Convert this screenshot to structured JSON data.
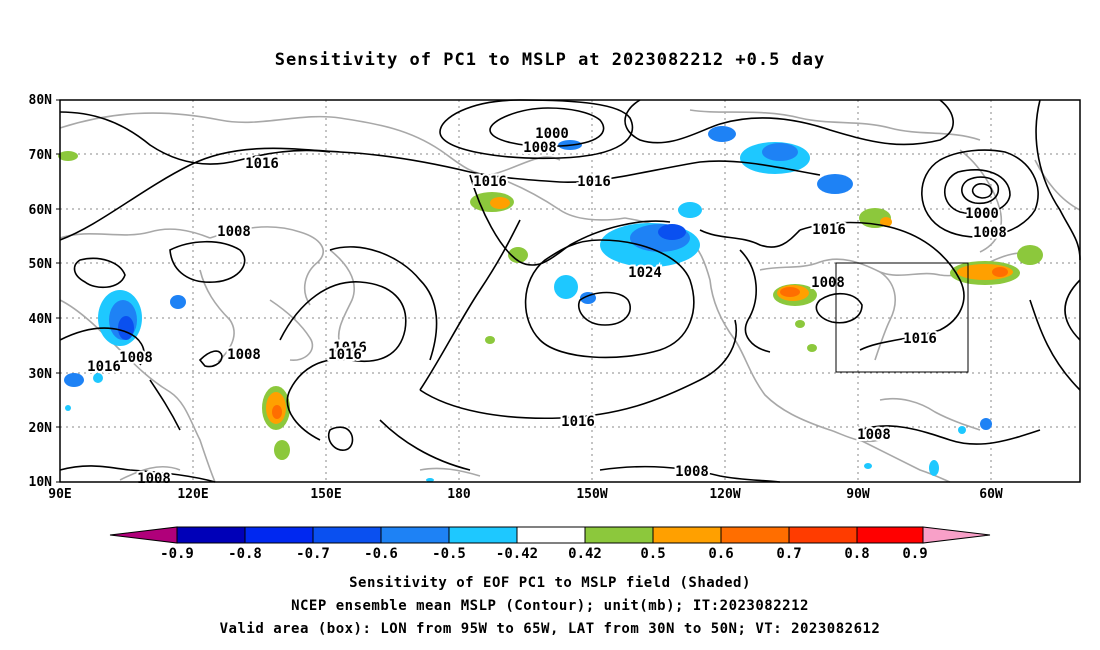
{
  "title": "Sensitivity of PC1 to MSLP at 2023082212 +0.5 day",
  "map": {
    "lat_labels": [
      "80N",
      "70N",
      "60N",
      "50N",
      "40N",
      "30N",
      "20N",
      "10N"
    ],
    "lon_labels": [
      "90E",
      "120E",
      "150E",
      "180",
      "150W",
      "120W",
      "90W",
      "60W"
    ],
    "contour_labels": [
      {
        "text": "1000"
      },
      {
        "text": "1008"
      },
      {
        "text": "1016"
      },
      {
        "text": "1016"
      },
      {
        "text": "1016"
      },
      {
        "text": "1008"
      },
      {
        "text": "1024"
      },
      {
        "text": "1016"
      },
      {
        "text": "1016"
      },
      {
        "text": "1008"
      },
      {
        "text": "1008"
      },
      {
        "text": "1008"
      },
      {
        "text": "1016"
      },
      {
        "text": "1008"
      },
      {
        "text": "1016"
      },
      {
        "text": "1016"
      },
      {
        "text": "1008"
      },
      {
        "text": "1008"
      },
      {
        "text": "1016"
      },
      {
        "text": "1000"
      },
      {
        "text": "1008"
      }
    ],
    "valid_box": {
      "lon_from": "95W",
      "lon_to": "65W",
      "lat_from": "30N",
      "lat_to": "50N"
    }
  },
  "colorbar": {
    "labels": [
      "-0.9",
      "-0.8",
      "-0.7",
      "-0.6",
      "-0.5",
      "-0.42",
      "0.42",
      "0.5",
      "0.6",
      "0.7",
      "0.8",
      "0.9"
    ],
    "colors": [
      "#b0007a",
      "#0000b8",
      "#0028f0",
      "#0a50f0",
      "#1e82f5",
      "#1ec8ff",
      "#ffffff",
      "#8cc83c",
      "#ffa000",
      "#ff6e00",
      "#ff3c00",
      "#ff0000",
      "#f8a0c8"
    ]
  },
  "captions": {
    "line1": "Sensitivity of EOF PC1 to MSLP field (Shaded)",
    "line2": "NCEP ensemble mean MSLP (Contour); unit(mb); IT:2023082212",
    "line3": "Valid area (box): LON from 95W to 65W, LAT from 30N to 50N; VT: 2023082612"
  }
}
